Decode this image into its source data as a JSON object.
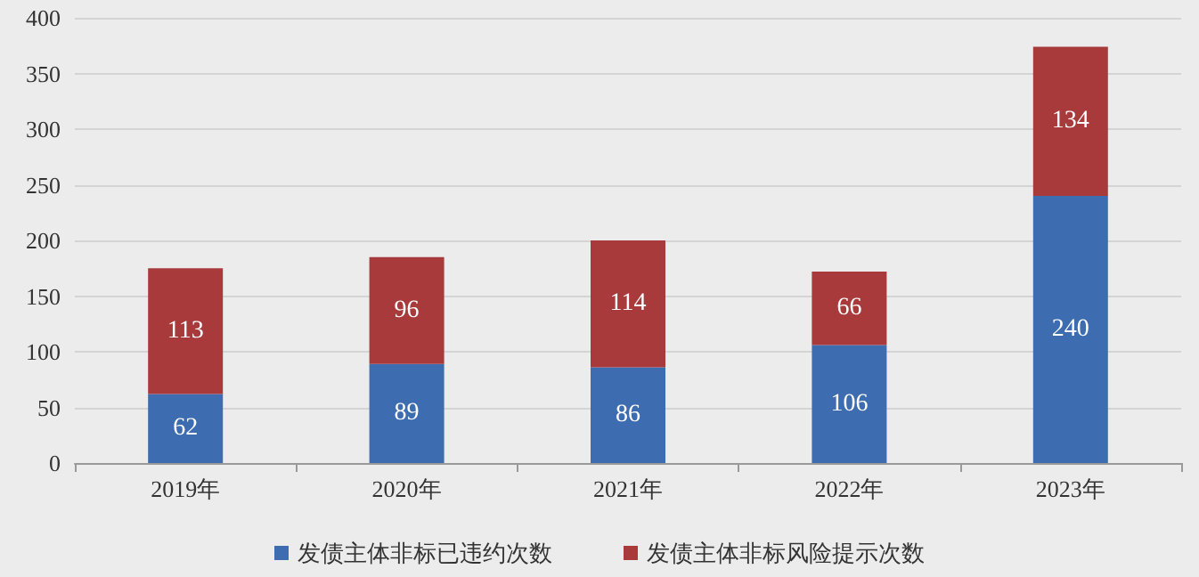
{
  "chart_data": {
    "type": "bar",
    "stacked": true,
    "categories": [
      "2019年",
      "2020年",
      "2021年",
      "2022年",
      "2023年"
    ],
    "series": [
      {
        "name": "发债主体非标已违约次数",
        "color": "#3d6db0",
        "values": [
          62,
          89,
          86,
          106,
          240
        ]
      },
      {
        "name": "发债主体非标风险提示次数",
        "color": "#a83a3c",
        "values": [
          113,
          96,
          114,
          66,
          134
        ]
      }
    ],
    "ylim": [
      0,
      400
    ],
    "yticks": [
      0,
      50,
      100,
      150,
      200,
      250,
      300,
      350,
      400
    ],
    "grid": "y",
    "legend": "bottom",
    "data_labels": true
  }
}
